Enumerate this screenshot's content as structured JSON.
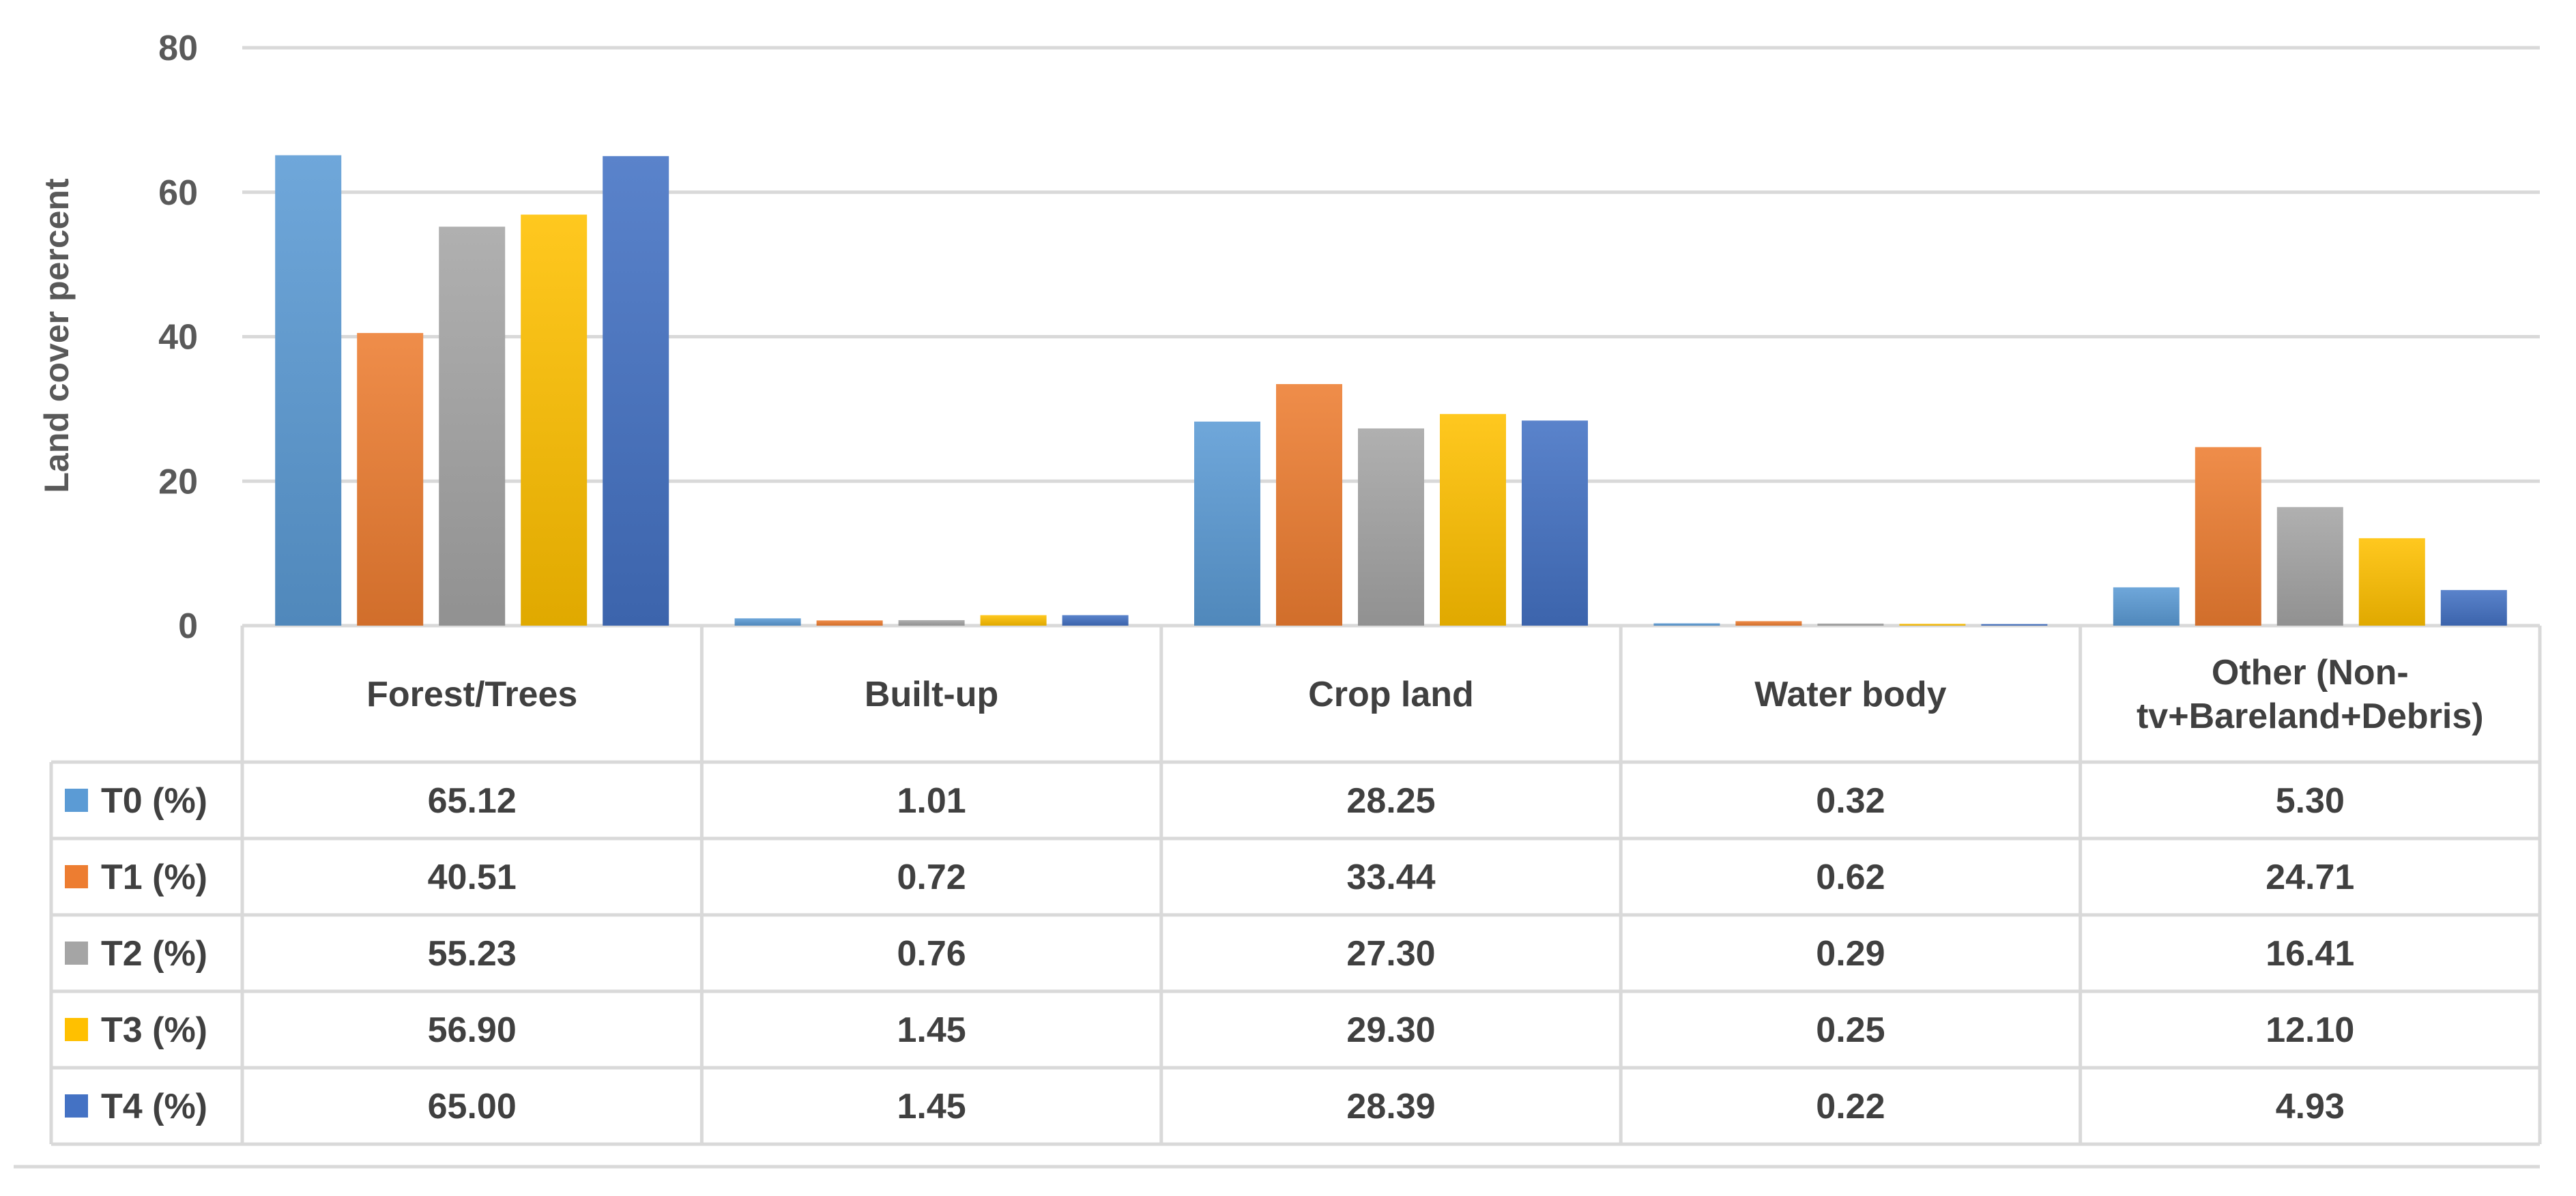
{
  "chart_data": {
    "type": "bar",
    "ylabel": "Land cover percent",
    "ylim": [
      0,
      80
    ],
    "yticks": [
      0,
      20,
      40,
      60,
      80
    ],
    "grid": true,
    "legend": "data-table-rows",
    "categories": [
      [
        "Forest/Trees"
      ],
      [
        "Built-up"
      ],
      [
        "Crop land"
      ],
      [
        "Water body"
      ],
      [
        "Other (Non-",
        "tv+Bareland+Debris)"
      ]
    ],
    "series": [
      {
        "name": "T0 (%)",
        "color": "#5b9bd5",
        "values": [
          65.12,
          1.01,
          28.25,
          0.32,
          5.3
        ],
        "labels": [
          "65.12",
          "1.01",
          "28.25",
          "0.32",
          "5.30"
        ]
      },
      {
        "name": "T1 (%)",
        "color": "#ed7d31",
        "values": [
          40.51,
          0.72,
          33.44,
          0.62,
          24.71
        ],
        "labels": [
          "40.51",
          "0.72",
          "33.44",
          "0.62",
          "24.71"
        ]
      },
      {
        "name": "T2 (%)",
        "color": "#a5a5a5",
        "values": [
          55.23,
          0.76,
          27.3,
          0.29,
          16.41
        ],
        "labels": [
          "55.23",
          "0.76",
          "27.30",
          "0.29",
          "16.41"
        ]
      },
      {
        "name": "T3 (%)",
        "color": "#ffc000",
        "values": [
          56.9,
          1.45,
          29.3,
          0.25,
          12.1
        ],
        "labels": [
          "56.90",
          "1.45",
          "29.30",
          "0.25",
          "12.10"
        ]
      },
      {
        "name": "T4 (%)",
        "color": "#4472c4",
        "values": [
          65.0,
          1.45,
          28.39,
          0.22,
          4.93
        ],
        "labels": [
          "65.00",
          "1.45",
          "28.39",
          "0.22",
          "4.93"
        ]
      }
    ]
  }
}
